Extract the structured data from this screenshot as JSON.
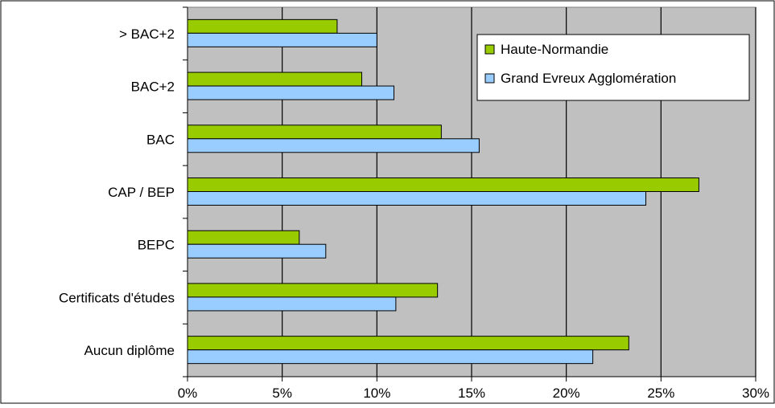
{
  "chart_data": {
    "type": "bar",
    "orientation": "horizontal",
    "categories": [
      "> BAC+2",
      "BAC+2",
      "BAC",
      "CAP / BEP",
      "BEPC",
      "Certificats d'études",
      "Aucun diplôme"
    ],
    "series": [
      {
        "name": "Haute-Normandie",
        "color": "#99CC00",
        "values": [
          7.9,
          9.2,
          13.4,
          27.0,
          5.9,
          13.2,
          23.3
        ]
      },
      {
        "name": "Grand Evreux Agglomération",
        "color": "#99CCFF",
        "values": [
          10.0,
          10.9,
          15.4,
          24.2,
          7.3,
          11.0,
          21.4
        ]
      }
    ],
    "xlim": [
      0,
      30
    ],
    "xticks": [
      "0%",
      "5%",
      "10%",
      "15%",
      "20%",
      "25%",
      "30%"
    ],
    "xtick_values": [
      0,
      5,
      10,
      15,
      20,
      25,
      30
    ],
    "plot_background": "#C0C0C0",
    "grid": true,
    "legend_position": "top-right"
  }
}
